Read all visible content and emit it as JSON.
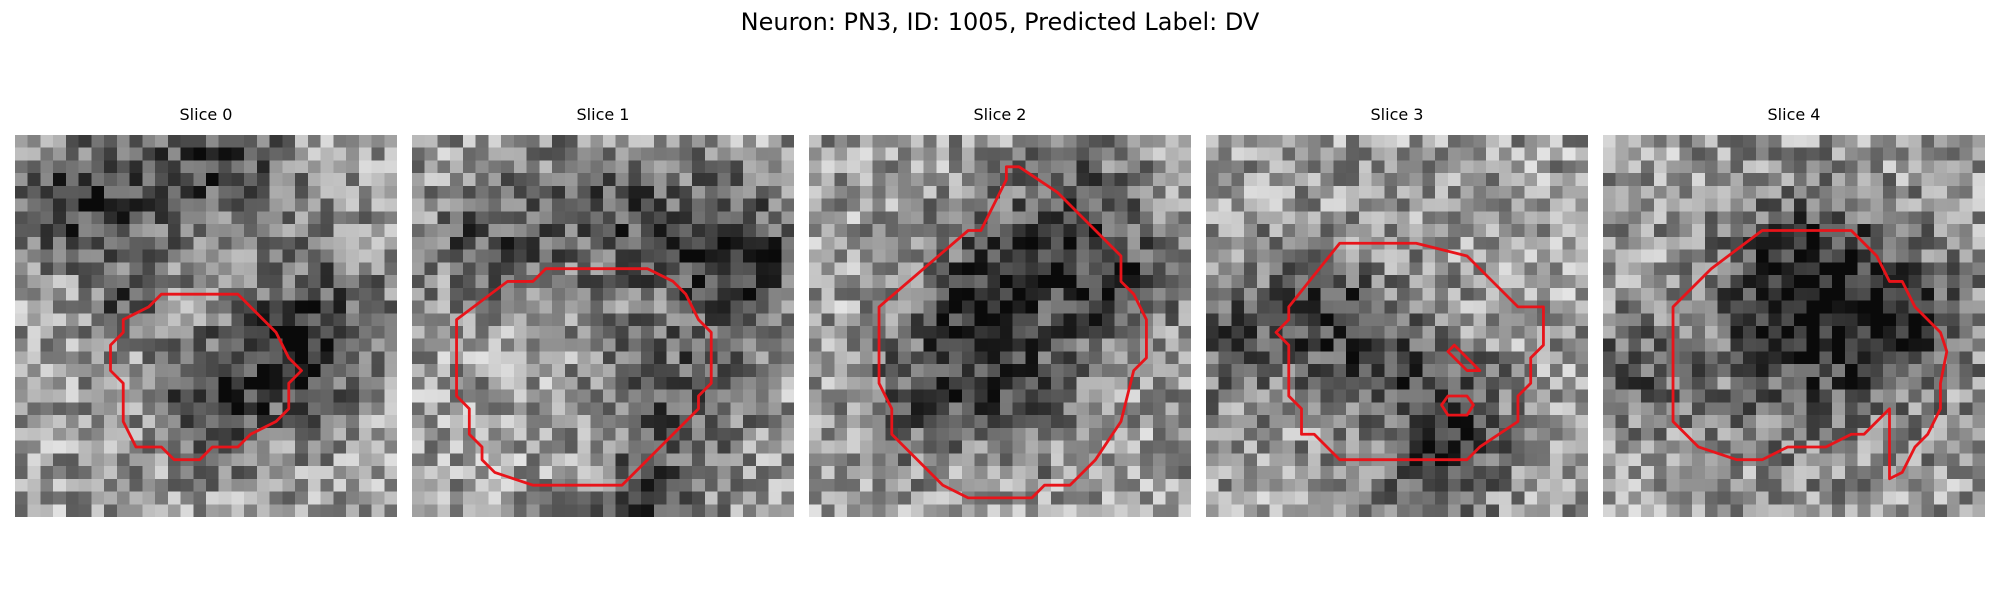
{
  "figure": {
    "title": "Neuron: PN3, ID: 1005, Predicted Label: DV"
  },
  "colors": {
    "contour": "#e8141a",
    "background": "#ffffff"
  },
  "colormap": "gray",
  "grid_size": 30,
  "slices": [
    {
      "label": "Slice 0",
      "contours": [
        [
          [
            11.5,
            12.5
          ],
          [
            17.5,
            12.5
          ],
          [
            20.5,
            15.5
          ],
          [
            21.5,
            17.5
          ],
          [
            22.5,
            18.5
          ],
          [
            21.5,
            19.5
          ],
          [
            21.5,
            21.5
          ],
          [
            20.5,
            22.5
          ],
          [
            18.5,
            23.5
          ],
          [
            17.5,
            24.5
          ],
          [
            15.5,
            24.5
          ],
          [
            14.5,
            25.5
          ],
          [
            12.5,
            25.5
          ],
          [
            11.5,
            24.5
          ],
          [
            9.5,
            24.5
          ],
          [
            8.5,
            22.5
          ],
          [
            8.5,
            19.5
          ],
          [
            7.5,
            18.5
          ],
          [
            7.5,
            16.5
          ],
          [
            8.5,
            15.5
          ],
          [
            8.5,
            14.5
          ],
          [
            10.5,
            13.5
          ]
        ]
      ]
    },
    {
      "label": "Slice 1",
      "contours": [
        [
          [
            10.5,
            10.5
          ],
          [
            18.5,
            10.5
          ],
          [
            20.5,
            11.5
          ],
          [
            21.5,
            12.5
          ],
          [
            22.5,
            14.5
          ],
          [
            23.5,
            15.5
          ],
          [
            23.5,
            19.5
          ],
          [
            22.5,
            20.5
          ],
          [
            22.5,
            21.5
          ],
          [
            16.5,
            27.5
          ],
          [
            15.5,
            27.5
          ],
          [
            15.5,
            27.5
          ],
          [
            9.5,
            27.5
          ],
          [
            6.5,
            26.5
          ],
          [
            5.5,
            25.5
          ],
          [
            5.5,
            24.5
          ],
          [
            4.5,
            23.5
          ],
          [
            4.5,
            21.5
          ],
          [
            3.5,
            20.5
          ],
          [
            3.5,
            14.5
          ],
          [
            7.5,
            11.5
          ],
          [
            9.5,
            11.5
          ]
        ]
      ]
    },
    {
      "label": "Slice 2",
      "contours": [
        [
          [
            15.5,
            2.5
          ],
          [
            16.5,
            2.5
          ],
          [
            19.5,
            4.5
          ],
          [
            20.5,
            5.5
          ],
          [
            24.5,
            9.5
          ],
          [
            24.5,
            11.5
          ],
          [
            25.5,
            12.5
          ],
          [
            26.5,
            14.5
          ],
          [
            26.5,
            17.5
          ],
          [
            25.5,
            18.5
          ],
          [
            24.5,
            22.5
          ],
          [
            22.5,
            25.5
          ],
          [
            20.5,
            27.5
          ],
          [
            18.5,
            27.5
          ],
          [
            17.5,
            28.5
          ],
          [
            12.5,
            28.5
          ],
          [
            10.5,
            27.5
          ],
          [
            7.5,
            24.5
          ],
          [
            6.5,
            23.5
          ],
          [
            6.5,
            21.5
          ],
          [
            5.5,
            19.5
          ],
          [
            5.5,
            13.5
          ],
          [
            12.5,
            7.5
          ],
          [
            13.5,
            7.5
          ],
          [
            14.5,
            5.5
          ],
          [
            15.5,
            3.5
          ]
        ]
      ]
    },
    {
      "label": "Slice 3",
      "contours": [
        [
          [
            10.5,
            8.5
          ],
          [
            16.5,
            8.5
          ],
          [
            20.5,
            9.5
          ],
          [
            22.5,
            11.5
          ],
          [
            24.5,
            13.5
          ],
          [
            26.5,
            13.5
          ],
          [
            26.5,
            16.5
          ],
          [
            25.5,
            17.5
          ],
          [
            25.5,
            19.5
          ],
          [
            24.5,
            20.5
          ],
          [
            24.5,
            22.5
          ],
          [
            21.5,
            24.5
          ],
          [
            20.5,
            25.5
          ],
          [
            16.5,
            25.5
          ],
          [
            12.5,
            25.5
          ],
          [
            10.5,
            25.5
          ],
          [
            9.5,
            24.5
          ],
          [
            8.5,
            23.5
          ],
          [
            7.5,
            23.5
          ],
          [
            7.5,
            21.5
          ],
          [
            6.5,
            20.5
          ],
          [
            6.5,
            16.5
          ],
          [
            5.5,
            15.5
          ],
          [
            6.5,
            14.5
          ],
          [
            6.5,
            13.5
          ]
        ],
        [
          [
            19.5,
            16.5
          ],
          [
            21.5,
            18.5
          ],
          [
            20.5,
            18.5
          ],
          [
            19.0,
            17.0
          ]
        ],
        [
          [
            19.0,
            20.5
          ],
          [
            20.5,
            20.5
          ],
          [
            21.0,
            21.2
          ],
          [
            20.5,
            22.0
          ],
          [
            19.0,
            22.0
          ],
          [
            18.5,
            21.2
          ]
        ]
      ]
    },
    {
      "label": "Slice 4",
      "contours": [
        [
          [
            12.5,
            7.5
          ],
          [
            19.5,
            7.5
          ],
          [
            20.5,
            8.5
          ],
          [
            21.5,
            9.5
          ],
          [
            22.5,
            11.5
          ],
          [
            23.5,
            11.5
          ],
          [
            24.5,
            13.5
          ],
          [
            26.5,
            15.5
          ],
          [
            27.0,
            17.0
          ],
          [
            26.5,
            19.5
          ],
          [
            26.5,
            21.5
          ],
          [
            25.5,
            23.5
          ],
          [
            24.5,
            24.5
          ],
          [
            23.5,
            26.5
          ],
          [
            22.5,
            27.0
          ],
          [
            22.5,
            21.5
          ],
          [
            21.5,
            22.5
          ],
          [
            20.5,
            23.5
          ],
          [
            19.5,
            23.5
          ],
          [
            17.5,
            24.5
          ],
          [
            14.5,
            24.5
          ],
          [
            12.5,
            25.5
          ],
          [
            10.5,
            25.5
          ],
          [
            7.5,
            24.5
          ],
          [
            5.5,
            22.5
          ],
          [
            5.5,
            13.5
          ],
          [
            8.5,
            10.5
          ]
        ]
      ]
    }
  ]
}
